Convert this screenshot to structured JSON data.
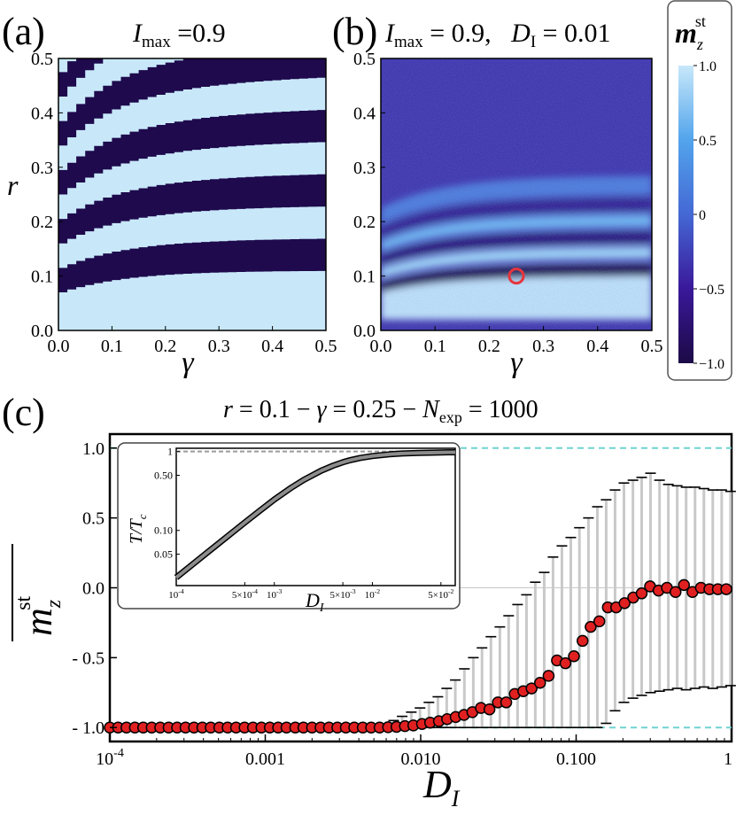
{
  "chart_data": [
    {
      "id": "a",
      "type": "heatmap",
      "panel_label": "(a)",
      "title": {
        "var": "I",
        "sub": "max",
        "rest": " =0.9"
      },
      "xlabel": "γ",
      "ylabel": "r",
      "xlim": [
        0,
        0.5
      ],
      "ylim": [
        0,
        0.5
      ],
      "xticks": [
        "0.0",
        "0.1",
        "0.2",
        "0.3",
        "0.4",
        "0.5"
      ],
      "yticks": [
        "0.0",
        "0.1",
        "0.2",
        "0.3",
        "0.4",
        "0.5"
      ],
      "band_pattern": "alternating +1/-1 stripes, rising with γ; lowest boundary r≈0.07 at γ=0 to 0.11 at γ=0.5, upper stripes spaced ≈0.045 in r"
    },
    {
      "id": "b",
      "type": "heatmap",
      "panel_label": "(b)",
      "title": {
        "var1": "I",
        "sub1": "max",
        "mid": " = 0.9,   ",
        "var2": "D",
        "sub2": "I",
        "rest": " = 0.01"
      },
      "xlabel": "γ",
      "ylabel": "",
      "xlim": [
        0,
        0.5
      ],
      "ylim": [
        0,
        0.5
      ],
      "xticks": [
        "0.0",
        "0.1",
        "0.2",
        "0.3",
        "0.4",
        "0.5"
      ],
      "yticks": [
        "0.0",
        "0.1",
        "0.2",
        "0.3",
        "0.4",
        "0.5"
      ],
      "marker": {
        "x": 0.25,
        "y": 0.1,
        "color": "#e8343c"
      }
    },
    {
      "id": "colorbar",
      "type": "colorbar",
      "label_base": "m",
      "label_sub": "z",
      "label_sup": "st",
      "range": [
        -1,
        1
      ],
      "ticks": [
        {
          "value": 1.0,
          "label": "1.0"
        },
        {
          "value": 0.5,
          "label": "0.5"
        },
        {
          "value": 0,
          "label": "0"
        },
        {
          "value": -0.5,
          "label": "−0.5"
        },
        {
          "value": -1.0,
          "label": "−1.0"
        }
      ],
      "colors": [
        "#1c0a46",
        "#3a189a",
        "#4468d4",
        "#52a4ec",
        "#c8e8fa"
      ]
    },
    {
      "id": "c",
      "type": "scatter",
      "panel_label": "(c)",
      "title": {
        "v1": "r",
        "t1": " = 0.1 − ",
        "v2": "γ",
        "t2": " = 0.25 − ",
        "v3": "N",
        "sub3": "exp",
        "t3": " = 1000"
      },
      "xlabel": {
        "var": "D",
        "sub": "I"
      },
      "ylabel": {
        "base": "m",
        "sub": "z",
        "sup": "st"
      },
      "xscale": "log",
      "xlim": [
        0.0001,
        1
      ],
      "ylim": [
        -1.1,
        1.1
      ],
      "xticks": [
        {
          "value": 0.0001,
          "base": "10",
          "exp": "-4"
        },
        {
          "value": 0.001,
          "label": "0.001"
        },
        {
          "value": 0.01,
          "label": "0.010"
        },
        {
          "value": 0.1,
          "label": "0.100"
        },
        {
          "value": 1,
          "label": "1"
        }
      ],
      "yticks": [
        {
          "value": 1.0,
          "label": "1.0"
        },
        {
          "value": 0.5,
          "label": "0.5"
        },
        {
          "value": 0.0,
          "label": "0.0"
        },
        {
          "value": -0.5,
          "label": "- 0.5"
        },
        {
          "value": -1.0,
          "label": "- 1.0"
        }
      ],
      "reference_lines": [
        1.0,
        -1.0
      ],
      "points": [
        {
          "x": 0.0001,
          "y": -1.0
        },
        {
          "x": 0.000113,
          "y": -1.0
        },
        {
          "x": 0.000128,
          "y": -1.0
        },
        {
          "x": 0.000145,
          "y": -1.0
        },
        {
          "x": 0.000164,
          "y": -1.0
        },
        {
          "x": 0.000186,
          "y": -1.0
        },
        {
          "x": 0.000211,
          "y": -1.0
        },
        {
          "x": 0.000239,
          "y": -1.0
        },
        {
          "x": 0.000271,
          "y": -1.0
        },
        {
          "x": 0.000307,
          "y": -1.0
        },
        {
          "x": 0.000348,
          "y": -1.0
        },
        {
          "x": 0.000394,
          "y": -1.0
        },
        {
          "x": 0.000446,
          "y": -1.0
        },
        {
          "x": 0.000506,
          "y": -1.0
        },
        {
          "x": 0.000573,
          "y": -1.0
        },
        {
          "x": 0.000649,
          "y": -1.0
        },
        {
          "x": 0.000736,
          "y": -1.0
        },
        {
          "x": 0.000834,
          "y": -1.0
        },
        {
          "x": 0.000945,
          "y": -1.0
        },
        {
          "x": 0.00107,
          "y": -1.0
        },
        {
          "x": 0.00121,
          "y": -1.0
        },
        {
          "x": 0.00137,
          "y": -1.0
        },
        {
          "x": 0.00156,
          "y": -1.0
        },
        {
          "x": 0.00176,
          "y": -1.0
        },
        {
          "x": 0.002,
          "y": -1.0
        },
        {
          "x": 0.00227,
          "y": -1.0
        },
        {
          "x": 0.00257,
          "y": -1.0
        },
        {
          "x": 0.00291,
          "y": -1.0
        },
        {
          "x": 0.0033,
          "y": -1.0
        },
        {
          "x": 0.00374,
          "y": -1.0
        },
        {
          "x": 0.00424,
          "y": -1.0
        },
        {
          "x": 0.0048,
          "y": -1.0
        },
        {
          "x": 0.00544,
          "y": -1.0
        },
        {
          "x": 0.00617,
          "y": -0.998
        },
        {
          "x": 0.00699,
          "y": -0.995
        },
        {
          "x": 0.00792,
          "y": -0.99
        },
        {
          "x": 0.00897,
          "y": -0.985
        },
        {
          "x": 0.0102,
          "y": -0.975
        },
        {
          "x": 0.0115,
          "y": -0.965
        },
        {
          "x": 0.0131,
          "y": -0.955
        },
        {
          "x": 0.0148,
          "y": -0.94
        },
        {
          "x": 0.0168,
          "y": -0.925
        },
        {
          "x": 0.019,
          "y": -0.91
        },
        {
          "x": 0.0215,
          "y": -0.89
        },
        {
          "x": 0.0244,
          "y": -0.86
        },
        {
          "x": 0.0277,
          "y": -0.87
        },
        {
          "x": 0.0314,
          "y": -0.82
        },
        {
          "x": 0.0355,
          "y": -0.82
        },
        {
          "x": 0.0403,
          "y": -0.76
        },
        {
          "x": 0.0457,
          "y": -0.74
        },
        {
          "x": 0.0517,
          "y": -0.72
        },
        {
          "x": 0.0586,
          "y": -0.68
        },
        {
          "x": 0.0665,
          "y": -0.63
        },
        {
          "x": 0.0753,
          "y": -0.52
        },
        {
          "x": 0.0854,
          "y": -0.54
        },
        {
          "x": 0.0968,
          "y": -0.49
        },
        {
          "x": 0.11,
          "y": -0.38
        },
        {
          "x": 0.124,
          "y": -0.28
        },
        {
          "x": 0.141,
          "y": -0.24
        },
        {
          "x": 0.16,
          "y": -0.14
        },
        {
          "x": 0.181,
          "y": -0.14
        },
        {
          "x": 0.205,
          "y": -0.11
        },
        {
          "x": 0.233,
          "y": -0.07
        },
        {
          "x": 0.264,
          "y": -0.04
        },
        {
          "x": 0.299,
          "y": 0.01
        },
        {
          "x": 0.339,
          "y": -0.02
        },
        {
          "x": 0.384,
          "y": 0.0
        },
        {
          "x": 0.436,
          "y": -0.03
        },
        {
          "x": 0.494,
          "y": 0.02
        },
        {
          "x": 0.56,
          "y": -0.03
        },
        {
          "x": 0.635,
          "y": 0.0
        },
        {
          "x": 0.72,
          "y": -0.01
        },
        {
          "x": 0.816,
          "y": -0.01
        },
        {
          "x": 0.925,
          "y": -0.01
        }
      ],
      "errorbars": [
        {
          "x": 0.0059,
          "lo": -1.0,
          "hi": -0.98
        },
        {
          "x": 0.0067,
          "lo": -1.0,
          "hi": -0.95
        },
        {
          "x": 0.0076,
          "lo": -1.0,
          "hi": -0.92
        },
        {
          "x": 0.0087,
          "lo": -1.0,
          "hi": -0.89
        },
        {
          "x": 0.0099,
          "lo": -1.0,
          "hi": -0.86
        },
        {
          "x": 0.0113,
          "lo": -1.0,
          "hi": -0.82
        },
        {
          "x": 0.0129,
          "lo": -1.0,
          "hi": -0.78
        },
        {
          "x": 0.0147,
          "lo": -1.0,
          "hi": -0.72
        },
        {
          "x": 0.0167,
          "lo": -1.0,
          "hi": -0.66
        },
        {
          "x": 0.0191,
          "lo": -1.0,
          "hi": -0.58
        },
        {
          "x": 0.0218,
          "lo": -1.0,
          "hi": -0.5
        },
        {
          "x": 0.0248,
          "lo": -1.0,
          "hi": -0.43
        },
        {
          "x": 0.0283,
          "lo": -1.0,
          "hi": -0.35
        },
        {
          "x": 0.0323,
          "lo": -1.0,
          "hi": -0.28
        },
        {
          "x": 0.0368,
          "lo": -1.0,
          "hi": -0.2
        },
        {
          "x": 0.042,
          "lo": -1.0,
          "hi": -0.12
        },
        {
          "x": 0.0479,
          "lo": -1.0,
          "hi": -0.05
        },
        {
          "x": 0.0546,
          "lo": -1.0,
          "hi": 0.04
        },
        {
          "x": 0.0623,
          "lo": -1.0,
          "hi": 0.11
        },
        {
          "x": 0.071,
          "lo": -1.0,
          "hi": 0.22
        },
        {
          "x": 0.081,
          "lo": -1.0,
          "hi": 0.3
        },
        {
          "x": 0.0924,
          "lo": -1.0,
          "hi": 0.36
        },
        {
          "x": 0.105,
          "lo": -1.0,
          "hi": 0.43
        },
        {
          "x": 0.12,
          "lo": -1.0,
          "hi": 0.5
        },
        {
          "x": 0.137,
          "lo": -1.0,
          "hi": 0.58
        },
        {
          "x": 0.156,
          "lo": -0.97,
          "hi": 0.63
        },
        {
          "x": 0.178,
          "lo": -0.88,
          "hi": 0.7
        },
        {
          "x": 0.203,
          "lo": -0.82,
          "hi": 0.75
        },
        {
          "x": 0.232,
          "lo": -0.79,
          "hi": 0.77
        },
        {
          "x": 0.264,
          "lo": -0.77,
          "hi": 0.79
        },
        {
          "x": 0.301,
          "lo": -0.75,
          "hi": 0.82
        },
        {
          "x": 0.344,
          "lo": -0.74,
          "hi": 0.77
        },
        {
          "x": 0.392,
          "lo": -0.73,
          "hi": 0.74
        },
        {
          "x": 0.447,
          "lo": -0.72,
          "hi": 0.73
        },
        {
          "x": 0.51,
          "lo": -0.73,
          "hi": 0.72
        },
        {
          "x": 0.582,
          "lo": -0.72,
          "hi": 0.72
        },
        {
          "x": 0.664,
          "lo": -0.71,
          "hi": 0.71
        },
        {
          "x": 0.757,
          "lo": -0.72,
          "hi": 0.7
        },
        {
          "x": 0.864,
          "lo": -0.71,
          "hi": 0.7
        },
        {
          "x": 0.985,
          "lo": -0.7,
          "hi": 0.69
        }
      ],
      "inset": {
        "type": "line",
        "xlabel": {
          "var": "D",
          "sub": "I"
        },
        "ylabel": "T/T",
        "ylabel_sub": "c",
        "xscale": "log",
        "yscale": "log",
        "xlim": [
          0.0001,
          0.07
        ],
        "ylim": [
          0.02,
          1.1
        ],
        "xticks": [
          {
            "value": 0.0001,
            "base": "10",
            "exp": "-4"
          },
          {
            "value": 0.0005,
            "pre": "5×",
            "base": "10",
            "exp": "-4"
          },
          {
            "value": 0.001,
            "base": "10",
            "exp": "-3"
          },
          {
            "value": 0.005,
            "pre": "5×",
            "base": "10",
            "exp": "-3"
          },
          {
            "value": 0.01,
            "base": "10",
            "exp": "-2"
          },
          {
            "value": 0.05,
            "pre": "5×",
            "base": "10",
            "exp": "-2"
          }
        ],
        "yticks": [
          {
            "value": 1,
            "label": "1"
          },
          {
            "value": 0.5,
            "label": "0.50"
          },
          {
            "value": 0.1,
            "label": "0.10"
          },
          {
            "value": 0.05,
            "label": "0.05"
          }
        ],
        "series": {
          "x": [
            0.0001,
            0.0002,
            0.0003,
            0.0005,
            0.0007,
            0.001,
            0.0015,
            0.002,
            0.003,
            0.004,
            0.005,
            0.006,
            0.0075,
            0.01,
            0.015,
            0.02,
            0.03,
            0.05,
            0.07
          ],
          "y": [
            0.0253,
            0.0506,
            0.0758,
            0.126,
            0.175,
            0.246,
            0.35,
            0.437,
            0.57,
            0.664,
            0.731,
            0.779,
            0.83,
            0.877,
            0.922,
            0.944,
            0.962,
            0.975,
            0.98
          ]
        }
      }
    }
  ]
}
